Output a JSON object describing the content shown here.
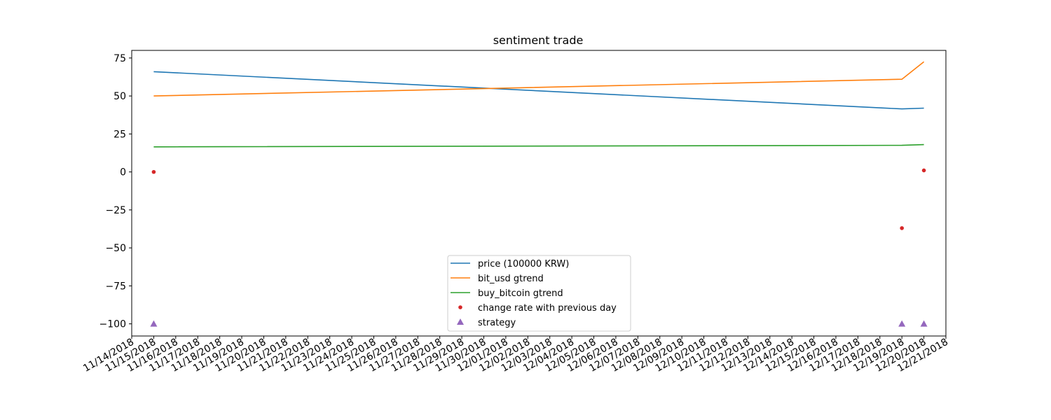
{
  "chart_data": {
    "type": "line",
    "title": "sentiment trade",
    "xlabel": "",
    "ylabel": "",
    "x_ticks": [
      "11/14/2018",
      "11/15/2018",
      "11/16/2018",
      "11/17/2018",
      "11/18/2018",
      "11/19/2018",
      "11/20/2018",
      "11/21/2018",
      "11/22/2018",
      "11/23/2018",
      "11/24/2018",
      "11/25/2018",
      "11/26/2018",
      "11/27/2018",
      "11/28/2018",
      "11/29/2018",
      "11/30/2018",
      "12/01/2018",
      "12/02/2018",
      "12/03/2018",
      "12/04/2018",
      "12/05/2018",
      "12/06/2018",
      "12/07/2018",
      "12/08/2018",
      "12/09/2018",
      "12/10/2018",
      "12/11/2018",
      "12/12/2018",
      "12/13/2018",
      "12/14/2018",
      "12/15/2018",
      "12/16/2018",
      "12/17/2018",
      "12/18/2018",
      "12/19/2018",
      "12/20/2018",
      "12/21/2018"
    ],
    "xlim": [
      "11/14/2018",
      "12/21/2018"
    ],
    "y_ticks": [
      75,
      50,
      25,
      0,
      -25,
      -50,
      -75,
      -100
    ],
    "ylim": [
      -108,
      80
    ],
    "grid": false,
    "legend_position": "bottom-center",
    "series": [
      {
        "name": "price (100000 KRW)",
        "kind": "line",
        "color": "#1f77b4",
        "x": [
          "11/15/2018",
          "12/19/2018",
          "12/20/2018"
        ],
        "y": [
          66,
          41.5,
          42
        ]
      },
      {
        "name": "bit_usd gtrend",
        "kind": "line",
        "color": "#ff7f0e",
        "x": [
          "11/15/2018",
          "12/19/2018",
          "12/20/2018"
        ],
        "y": [
          50,
          61,
          72.5
        ]
      },
      {
        "name": "buy_bitcoin gtrend",
        "kind": "line",
        "color": "#2ca02c",
        "x": [
          "11/15/2018",
          "12/19/2018",
          "12/20/2018"
        ],
        "y": [
          16.5,
          17.5,
          18
        ]
      },
      {
        "name": "change rate with previous day",
        "kind": "point",
        "color": "#d62728",
        "x": [
          "11/15/2018",
          "12/19/2018",
          "12/20/2018"
        ],
        "y": [
          0,
          -37,
          1
        ]
      },
      {
        "name": "strategy",
        "kind": "triangle",
        "color": "#9467bd",
        "x": [
          "11/15/2018",
          "12/19/2018",
          "12/20/2018"
        ],
        "y": [
          -100,
          -100,
          -100
        ]
      }
    ]
  }
}
